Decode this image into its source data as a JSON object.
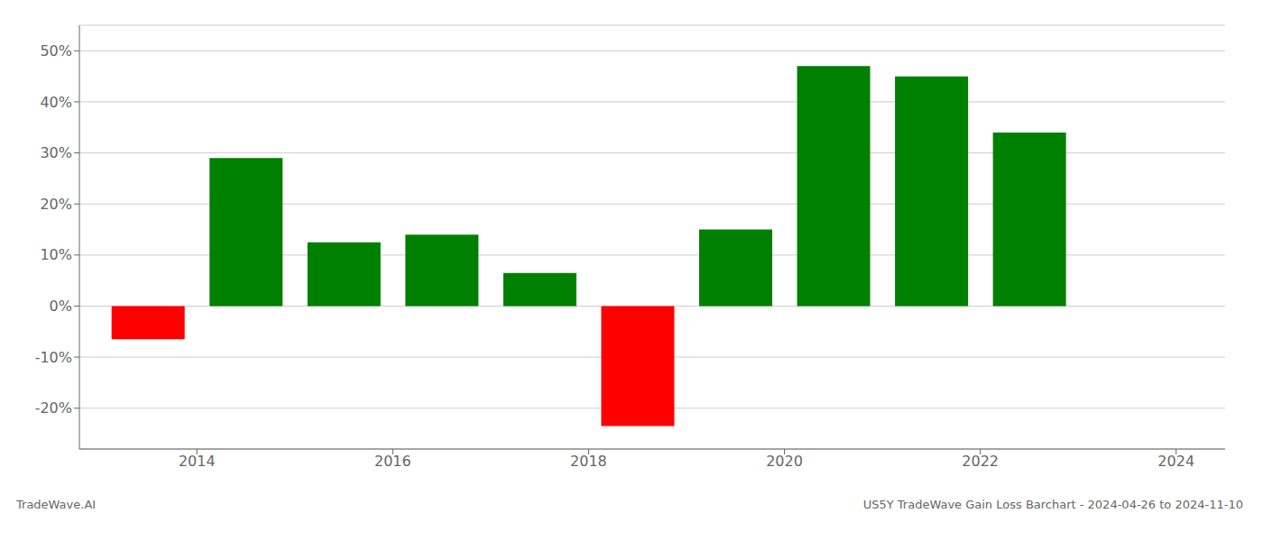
{
  "chart_data": {
    "type": "bar",
    "x": [
      2013.5,
      2014.5,
      2015.5,
      2016.5,
      2017.5,
      2018.5,
      2019.5,
      2020.5,
      2021.5,
      2022.5
    ],
    "values": [
      -6.5,
      29.0,
      12.5,
      14.0,
      6.5,
      -23.5,
      15.0,
      47.0,
      45.0,
      34.0
    ],
    "colors": [
      "#ff0000",
      "#008000",
      "#008000",
      "#008000",
      "#008000",
      "#ff0000",
      "#008000",
      "#008000",
      "#008000",
      "#008000"
    ],
    "xlim": [
      2012.8,
      2024.5
    ],
    "xticks": [
      2014,
      2016,
      2018,
      2020,
      2022,
      2024
    ],
    "ylim": [
      -28,
      55
    ],
    "yticks": [
      {
        "value": -20,
        "label": "-20%"
      },
      {
        "value": -10,
        "label": "-10%"
      },
      {
        "value": 0,
        "label": "0%"
      },
      {
        "value": 10,
        "label": "10%"
      },
      {
        "value": 20,
        "label": "20%"
      },
      {
        "value": 30,
        "label": "30%"
      },
      {
        "value": 40,
        "label": "40%"
      },
      {
        "value": 50,
        "label": "50%"
      }
    ],
    "grid": true,
    "annotations": [
      "TradeWave.AI",
      "US5Y TradeWave Gain Loss Barchart - 2024-04-26 to 2024-11-10"
    ]
  }
}
